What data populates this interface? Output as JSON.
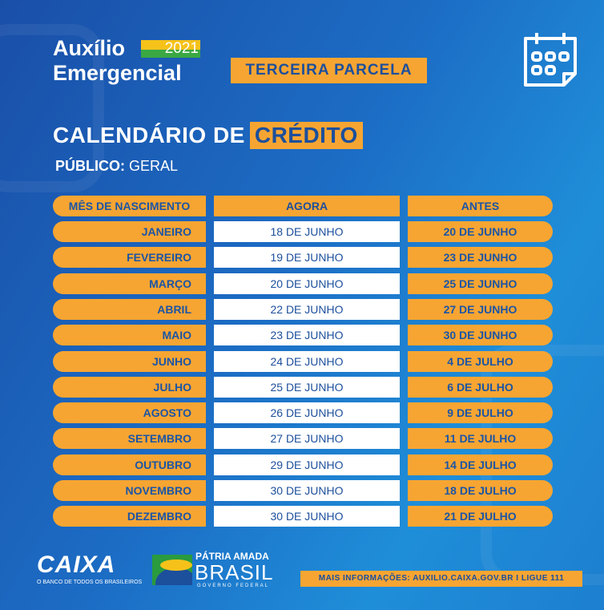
{
  "header": {
    "title_line1": "Auxílio",
    "title_line2": "Emergencial",
    "year": "2021",
    "parcela": "TERCEIRA PARCELA",
    "calendar_title": "CALENDÁRIO DE",
    "calendar_highlight": "CRÉDITO",
    "publico_label": "PÚBLICO:",
    "publico_value": "GERAL",
    "icon": "calendar-icon"
  },
  "table": {
    "headers": [
      "MÊS DE NASCIMENTO",
      "AGORA",
      "ANTES"
    ],
    "rows": [
      [
        "JANEIRO",
        "18 DE JUNHO",
        "20 DE JUNHO"
      ],
      [
        "FEVEREIRO",
        "19 DE JUNHO",
        "23 DE JUNHO"
      ],
      [
        "MARÇO",
        "20 DE JUNHO",
        "25 DE JUNHO"
      ],
      [
        "ABRIL",
        "22 DE JUNHO",
        "27 DE JUNHO"
      ],
      [
        "MAIO",
        "23 DE JUNHO",
        "30 DE JUNHO"
      ],
      [
        "JUNHO",
        "24 DE JUNHO",
        "4 DE JULHO"
      ],
      [
        "JULHO",
        "25 DE JUNHO",
        "6 DE JULHO"
      ],
      [
        "AGOSTO",
        "26 DE JUNHO",
        "9 DE JULHO"
      ],
      [
        "SETEMBRO",
        "27 DE JUNHO",
        "11 DE JULHO"
      ],
      [
        "OUTUBRO",
        "29 DE JUNHO",
        "14 DE JULHO"
      ],
      [
        "NOVEMBRO",
        "30 DE JUNHO",
        "18 DE JULHO"
      ],
      [
        "DEZEMBRO",
        "30 DE JUNHO",
        "21 DE JULHO"
      ]
    ]
  },
  "footer": {
    "caixa": "CAIXA",
    "caixa_tagline": "O BANCO DE TODOS OS BRASILEIROS",
    "patria": "PÁTRIA AMADA",
    "brasil": "BRASIL",
    "governo": "GOVERNO FEDERAL",
    "info": "MAIS INFORMAÇÕES: AUXILIO.CAIXA.GOV.BR I LIGUE 111"
  },
  "colors": {
    "orange": "#f7a532",
    "blue_text": "#1c4f9c",
    "background": "#1c6cc4"
  }
}
